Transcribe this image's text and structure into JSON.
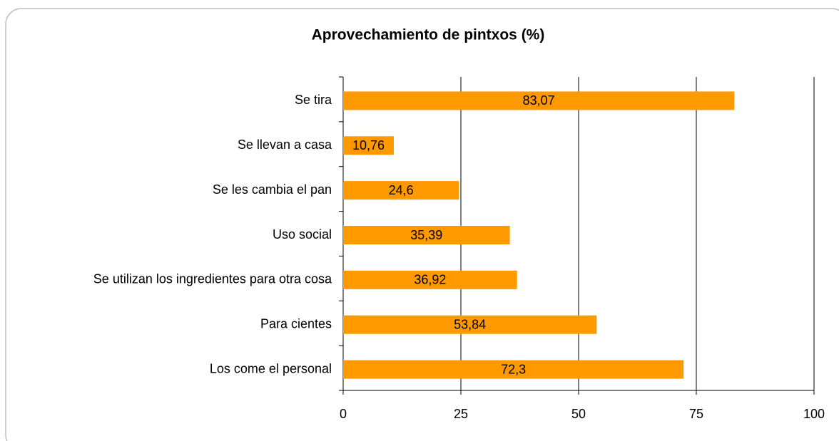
{
  "chart_data": {
    "type": "bar",
    "orientation": "horizontal",
    "title": "Aprovechamiento de pintxos (%)",
    "categories": [
      "Se tira",
      "Se llevan a casa",
      "Se les cambia el pan",
      "Uso social",
      "Se utilizan los ingredientes para otra cosa",
      "Para cientes",
      "Los come el personal"
    ],
    "values": [
      83.07,
      10.76,
      24.6,
      35.39,
      36.92,
      53.84,
      72.3
    ],
    "value_labels": [
      "83,07",
      "10,76",
      "24,6",
      "35,39",
      "36,92",
      "53,84",
      "72,3"
    ],
    "color": "#ff9900",
    "xlim": [
      0,
      100
    ],
    "xticks": [
      0,
      25,
      50,
      75,
      100
    ],
    "grid": true
  }
}
